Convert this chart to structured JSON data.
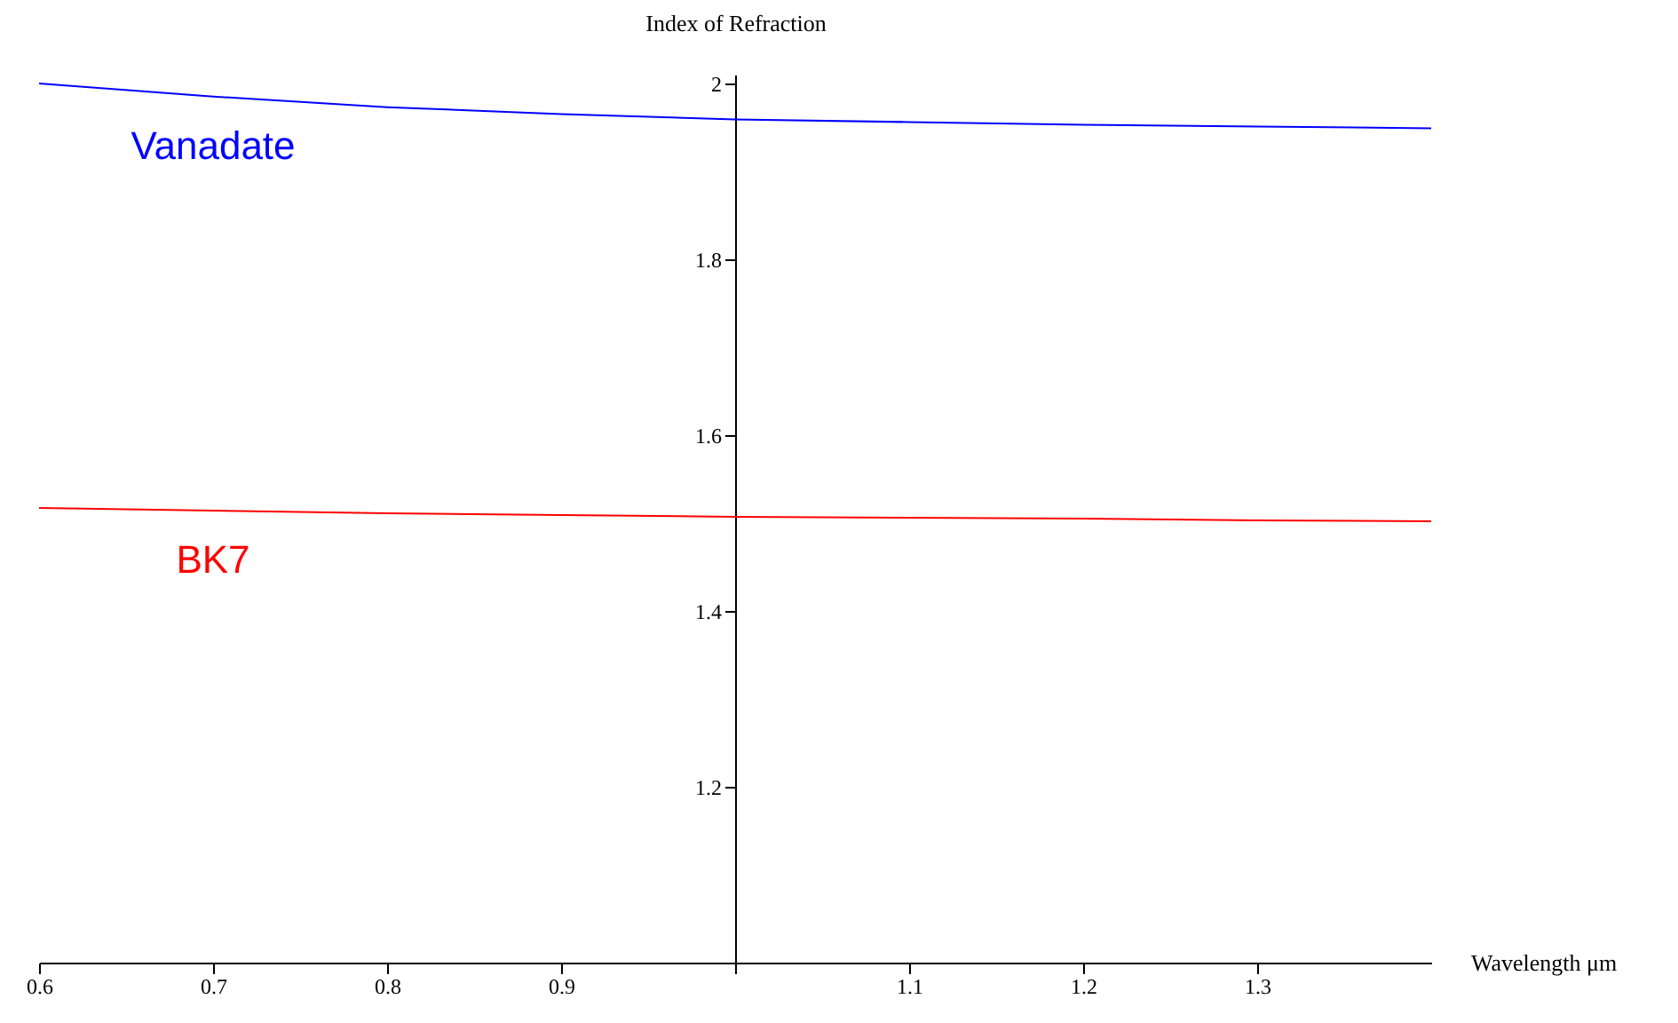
{
  "chart_data": {
    "type": "line",
    "xlabel": "Wavelength μm",
    "ylabel": "Index of Refraction",
    "x": [
      0.6,
      0.7,
      0.8,
      0.9,
      1.0,
      1.1,
      1.2,
      1.3,
      1.4
    ],
    "series": [
      {
        "name": "Vanadate",
        "color": "#0000ff",
        "values": [
          2.0,
          1.985,
          1.973,
          1.965,
          1.959,
          1.956,
          1.953,
          1.951,
          1.949
        ]
      },
      {
        "name": "BK7",
        "color": "#ff0000",
        "values": [
          1.517,
          1.514,
          1.511,
          1.509,
          1.507,
          1.506,
          1.505,
          1.503,
          1.502
        ]
      }
    ],
    "xlim": [
      0.6,
      1.4
    ],
    "ylim": [
      1.0,
      2.01
    ],
    "xticks": [
      0.6,
      0.7,
      0.8,
      0.9,
      {
        "value": 1.0,
        "label": null
      },
      1.1,
      1.2,
      1.3
    ],
    "yticks": [
      1.2,
      1.4,
      1.6,
      1.8,
      2
    ],
    "grid": false,
    "marker": "none",
    "line_style": "solid",
    "legend": false
  }
}
